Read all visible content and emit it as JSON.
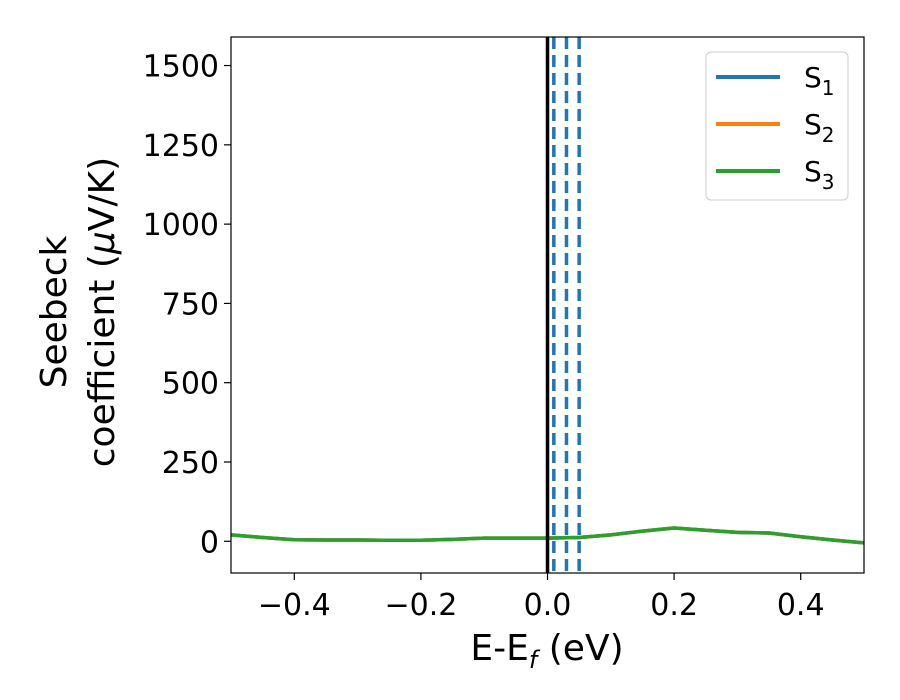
{
  "chart_data": {
    "type": "line",
    "xlabel": {
      "main": "E-E",
      "sub": "f",
      "unit": " (eV)"
    },
    "ylabel": {
      "line1": "Seebeck",
      "line2a": "coefficient  (",
      "mu": "μ",
      "line2b": "V/K)"
    },
    "xlim": [
      -0.5,
      0.5
    ],
    "ylim": [
      -100,
      1590
    ],
    "xticks": [
      -0.4,
      -0.2,
      0.0,
      0.2,
      0.4
    ],
    "xtick_labels": [
      "−0.4",
      "−0.2",
      "0.0",
      "0.2",
      "0.4"
    ],
    "yticks": [
      0,
      250,
      500,
      750,
      1000,
      1250,
      1500
    ],
    "ytick_labels": [
      "0",
      "250",
      "500",
      "750",
      "1000",
      "1250",
      "1500"
    ],
    "grid": false,
    "legend_position": "top-right",
    "legend": [
      {
        "name": "S",
        "sub": "1",
        "color": "#1f77b4"
      },
      {
        "name": "S",
        "sub": "2",
        "color": "#ff7f0e"
      },
      {
        "name": "S",
        "sub": "3",
        "color": "#2ca02c"
      }
    ],
    "fermi_line_x": 0.0,
    "dashed_lines_x": [
      0.01,
      0.03,
      0.05
    ],
    "dashed_color": "#1f77b4",
    "series": [
      {
        "sub": "1",
        "color": "#1f77b4",
        "x": [
          -0.5,
          -0.45,
          -0.4,
          -0.35,
          -0.3,
          -0.25,
          -0.2,
          -0.15,
          -0.1,
          -0.05,
          0.0,
          0.05,
          0.1,
          0.15,
          0.2,
          0.25,
          0.3,
          0.35,
          0.4,
          0.45,
          0.5
        ],
        "y": [
          20,
          12,
          5,
          4,
          4,
          3,
          3,
          6,
          10,
          10,
          10,
          12,
          20,
          32,
          42,
          35,
          28,
          26,
          14,
          4,
          -5
        ]
      },
      {
        "sub": "2",
        "color": "#ff7f0e",
        "x": [
          -0.5,
          -0.45,
          -0.4,
          -0.35,
          -0.3,
          -0.25,
          -0.2,
          -0.15,
          -0.1,
          -0.05,
          0.0,
          0.05,
          0.1,
          0.15,
          0.2,
          0.25,
          0.3,
          0.35,
          0.4,
          0.45,
          0.5
        ],
        "y": [
          20,
          12,
          5,
          4,
          4,
          3,
          3,
          6,
          10,
          10,
          10,
          12,
          20,
          32,
          42,
          35,
          28,
          26,
          14,
          4,
          -5
        ]
      },
      {
        "sub": "3",
        "color": "#2ca02c",
        "x": [
          -0.5,
          -0.45,
          -0.4,
          -0.35,
          -0.3,
          -0.25,
          -0.2,
          -0.15,
          -0.1,
          -0.05,
          0.0,
          0.05,
          0.1,
          0.15,
          0.2,
          0.25,
          0.3,
          0.35,
          0.4,
          0.45,
          0.5
        ],
        "y": [
          20,
          12,
          5,
          4,
          4,
          3,
          3,
          6,
          10,
          10,
          10,
          12,
          20,
          32,
          42,
          35,
          28,
          26,
          14,
          4,
          -5
        ]
      }
    ]
  }
}
